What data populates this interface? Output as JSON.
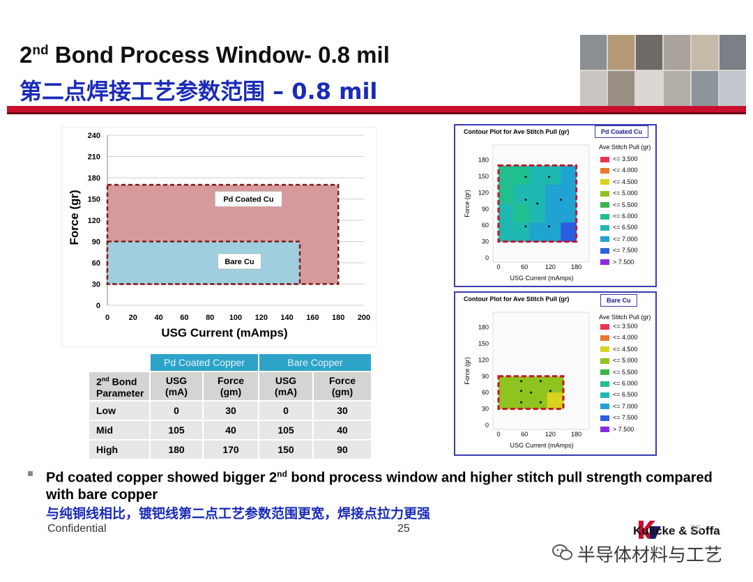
{
  "header": {
    "title_en_prefix": "2",
    "title_en_sup": "nd",
    "title_en_rest": " Bond Process Window- 0.8 mil",
    "title_cn": "第二点焊接工艺参数范围 – 0.8 mil"
  },
  "chart_data": [
    {
      "type": "area",
      "title": "",
      "xlabel": "USG Current (mAmps)",
      "ylabel": "Force (gr)",
      "xlim": [
        0,
        200
      ],
      "ylim": [
        0,
        240
      ],
      "xticks": [
        0,
        20,
        40,
        60,
        80,
        100,
        120,
        140,
        160,
        180,
        200
      ],
      "yticks": [
        0,
        30,
        60,
        90,
        120,
        150,
        180,
        210,
        240
      ],
      "grid": true,
      "regions": [
        {
          "name": "Pd Coated Cu",
          "x": [
            0,
            180
          ],
          "y": [
            30,
            170
          ],
          "color": "#d79a9a"
        },
        {
          "name": "Bare Cu",
          "x": [
            0,
            150
          ],
          "y": [
            30,
            90
          ],
          "color": "#9fcfdf"
        }
      ]
    },
    {
      "type": "heatmap",
      "title": "Contour Plot for Ave Stitch Pull (gr)",
      "tag": "Pd Coated Cu",
      "xlabel": "USG Current (mAmps)",
      "ylabel": "Force (gr)",
      "xticks": [
        0,
        60,
        120,
        180
      ],
      "yticks": [
        0,
        30,
        60,
        90,
        120,
        150,
        180
      ],
      "window": {
        "x": [
          0,
          180
        ],
        "y": [
          30,
          170
        ]
      }
    },
    {
      "type": "heatmap",
      "title": "Contour Plot for Ave Stitch Pull (gr)",
      "tag": "Bare Cu",
      "xlabel": "USG Current (mAmps)",
      "ylabel": "Force (gr)",
      "xticks": [
        0,
        60,
        120,
        180
      ],
      "yticks": [
        0,
        30,
        60,
        90,
        120,
        150,
        180
      ],
      "window": {
        "x": [
          0,
          150
        ],
        "y": [
          30,
          90
        ]
      }
    }
  ],
  "legend": {
    "title": "Ave Stitch Pull (gr)",
    "items": [
      {
        "label": "<= 3.500",
        "color": "#e8344e"
      },
      {
        "label": "<= 4.000",
        "color": "#e87a2a"
      },
      {
        "label": "<= 4.500",
        "color": "#d9d21e"
      },
      {
        "label": "<= 5.000",
        "color": "#8fc31f"
      },
      {
        "label": "<= 5.500",
        "color": "#3bb54a"
      },
      {
        "label": "<= 6.000",
        "color": "#1fbf8f"
      },
      {
        "label": "<= 6.500",
        "color": "#1fb8b0"
      },
      {
        "label": "<= 7.000",
        "color": "#1fa3d0"
      },
      {
        "label": "<= 7.500",
        "color": "#2a5fe0"
      },
      {
        "label": "> 7.500",
        "color": "#8a2be2"
      }
    ]
  },
  "table": {
    "group_pd": "Pd Coated Copper",
    "group_bare": "Bare Copper",
    "param_prefix": "2",
    "param_sup": "nd",
    "param_rest": " Bond",
    "param_line2": "Parameter",
    "usg_h": "USG",
    "usg_u": "(mA)",
    "force_h": "Force",
    "force_u": "(gm)",
    "rows": [
      {
        "label": "Low",
        "pd_usg": "0",
        "pd_force": "30",
        "bare_usg": "0",
        "bare_force": "30"
      },
      {
        "label": "Mid",
        "pd_usg": "105",
        "pd_force": "40",
        "bare_usg": "105",
        "bare_force": "40"
      },
      {
        "label": "High",
        "pd_usg": "180",
        "pd_force": "170",
        "bare_usg": "150",
        "bare_force": "90"
      }
    ]
  },
  "bullet": {
    "en_a": "Pd coated copper showed bigger 2",
    "en_sup": "nd",
    "en_b": " bond process window and higher stitch pull strength compared with bare copper",
    "cn": "与纯铜线相比，镀钯线第二点工艺参数范围更宽，焊接点拉力更强"
  },
  "footer": {
    "confidential": "Confidential",
    "page": "25",
    "logo_text": "Kulicke & Soffa",
    "slide_num": "25",
    "watermark": "半导体材料与工艺"
  }
}
